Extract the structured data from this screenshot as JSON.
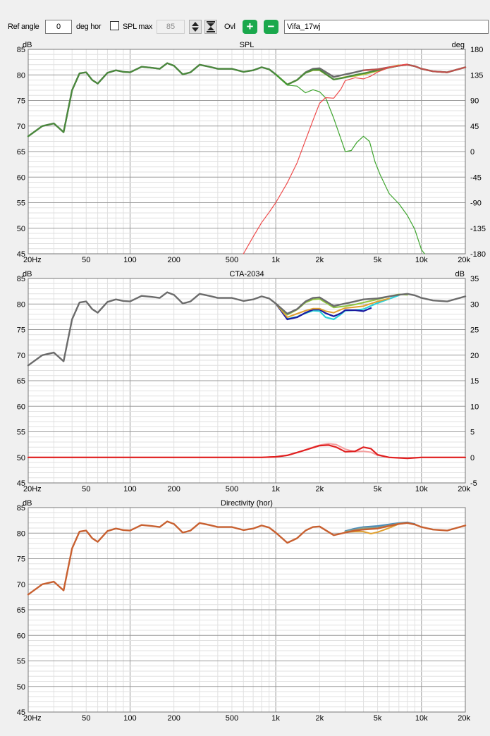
{
  "toolbar": {
    "ref_angle_label": "Ref angle",
    "ref_angle_value": "0",
    "deg_hor_label": "deg hor",
    "spl_max_label": "SPL max",
    "spl_max_value": "85",
    "spl_max_checked": false,
    "ovl_label": "Ovl",
    "driver_name": "Vifa_17wj",
    "accent_color": "#1aa84c"
  },
  "chart_data": [
    {
      "type": "line",
      "title": "SPL",
      "ylabel": "dB",
      "y2label": "deg",
      "xscale": "log",
      "xlim": [
        20,
        20000
      ],
      "ylim": [
        45,
        85
      ],
      "y2lim": [
        -180,
        180
      ],
      "grid": true,
      "xtick_labels": [
        "20Hz",
        "50",
        "100",
        "200",
        "500",
        "1k",
        "2k",
        "5k",
        "10k",
        "20k"
      ],
      "ytick_labels": [
        "45",
        "50",
        "55",
        "60",
        "65",
        "70",
        "75",
        "80",
        "85"
      ],
      "y2tick_labels": [
        "-180",
        "-135",
        "-90",
        "-45",
        "0",
        "45",
        "90",
        "135",
        "180"
      ],
      "series": [
        {
          "color": "#6b6b6b",
          "axis": "left",
          "width": 2.4,
          "x": [
            20,
            25,
            30,
            35,
            40,
            45,
            50,
            55,
            60,
            70,
            80,
            90,
            100,
            120,
            140,
            160,
            180,
            200,
            230,
            260,
            300,
            350,
            400,
            500,
            600,
            700,
            800,
            900,
            1000,
            1200,
            1400,
            1600,
            1800,
            2000,
            2500,
            3000,
            3500,
            4000,
            5000,
            6000,
            7000,
            8000,
            9000,
            10000,
            12000,
            15000,
            20000
          ],
          "y": [
            68,
            70,
            70.5,
            68.8,
            77,
            80.3,
            80.5,
            79,
            78.3,
            80.4,
            80.9,
            80.6,
            80.5,
            81.6,
            81.4,
            81.2,
            82.3,
            81.8,
            80.1,
            80.5,
            82,
            81.6,
            81.2,
            81.2,
            80.6,
            80.9,
            81.5,
            81.1,
            80.1,
            78.1,
            79,
            80.5,
            81.2,
            81.3,
            79.6,
            80.1,
            80.5,
            80.9,
            81.1,
            81.5,
            81.8,
            82,
            81.7,
            81.2,
            80.7,
            80.5,
            81.5
          ]
        },
        {
          "color": "#b5c63a",
          "axis": "left",
          "width": 2.2,
          "x": [
            1000,
            1200,
            1400,
            1600,
            1800,
            2000,
            2500,
            3000,
            3500,
            4000,
            5000,
            6000,
            7000
          ],
          "y": [
            80.1,
            78.1,
            79,
            80.4,
            80.9,
            80.9,
            79.1,
            79.6,
            79.8,
            80.1,
            80.8,
            81.5,
            81.9
          ]
        },
        {
          "color": "#4a8a3c",
          "axis": "left",
          "width": 2.2,
          "x": [
            20,
            25,
            30,
            35,
            40,
            45,
            50,
            55,
            60,
            70,
            80,
            90,
            100,
            120,
            140,
            160,
            180,
            200,
            230,
            260,
            300,
            350,
            400,
            500,
            600,
            700,
            800,
            900,
            1000,
            1200,
            1400,
            1600,
            1800,
            2000,
            2500,
            3000,
            3500,
            4000,
            5000,
            6000,
            7000,
            8000,
            9000,
            10000,
            12000,
            15000,
            20000
          ],
          "y": [
            68,
            70,
            70.5,
            68.8,
            77,
            80.3,
            80.5,
            79,
            78.3,
            80.4,
            80.9,
            80.6,
            80.5,
            81.6,
            81.4,
            81.2,
            82.3,
            81.8,
            80.1,
            80.5,
            82,
            81.6,
            81.2,
            81.2,
            80.6,
            80.9,
            81.5,
            81.1,
            80.1,
            78.1,
            79,
            80.4,
            81,
            81,
            79.1,
            79.5,
            80,
            80.3,
            80.9,
            81.4,
            81.8,
            82,
            81.7,
            81.2,
            80.7,
            80.5,
            81.5
          ]
        },
        {
          "color": "#c0504d",
          "axis": "left",
          "width": 2.2,
          "x": [
            4000,
            5000,
            6000,
            7000,
            8000,
            9000,
            10000,
            12000,
            15000,
            20000
          ],
          "y": [
            80.9,
            81.1,
            81.5,
            81.8,
            82,
            81.7,
            81.2,
            80.7,
            80.5,
            81.5
          ]
        },
        {
          "color": "#3fa52f",
          "axis": "left",
          "width": 1.2,
          "x": [
            1000,
            1200,
            1400,
            1600,
            1800,
            2000,
            2200,
            2500,
            2800,
            3000,
            3300,
            3600,
            4000,
            4400,
            4800,
            5200,
            6000,
            7000,
            8000,
            9000,
            10000,
            10500
          ],
          "y": [
            80.1,
            78,
            77.8,
            76.5,
            77.1,
            76.7,
            75.5,
            71.5,
            67.5,
            65,
            65.2,
            66.8,
            68,
            67,
            63,
            60.5,
            56.8,
            54.8,
            52.5,
            49.8,
            45.8,
            45
          ]
        },
        {
          "color": "#ee4b4b",
          "axis": "right",
          "width": 1.2,
          "x": [
            600,
            700,
            800,
            900,
            1000,
            1200,
            1400,
            1600,
            1800,
            2000,
            2200,
            2500,
            2800,
            3000,
            3500,
            4000,
            4500,
            5000,
            6000,
            7000,
            8000
          ],
          "y": [
            -180,
            -150,
            -125,
            -107,
            -90,
            -55,
            -20,
            20,
            55,
            85,
            95,
            94,
            110,
            125,
            130,
            128,
            133,
            140,
            148,
            152,
            154
          ]
        }
      ]
    },
    {
      "type": "line",
      "title": "CTA-2034",
      "ylabel": "dB",
      "y2label": "dB",
      "xscale": "log",
      "xlim": [
        20,
        20000
      ],
      "ylim": [
        45,
        85
      ],
      "y2lim": [
        -5,
        35
      ],
      "grid": true,
      "xtick_labels": [
        "20Hz",
        "50",
        "100",
        "200",
        "500",
        "1k",
        "2k",
        "5k",
        "10k",
        "20k"
      ],
      "ytick_labels": [
        "45",
        "50",
        "55",
        "60",
        "65",
        "70",
        "75",
        "80",
        "85"
      ],
      "y2tick_labels": [
        "-5",
        "0",
        "5",
        "10",
        "15",
        "20",
        "25",
        "30",
        "35"
      ],
      "series": [
        {
          "color": "#2bd0d8",
          "axis": "left",
          "width": 2.2,
          "x": [
            1000,
            1200,
            1400,
            1600,
            1800,
            2000,
            2200,
            2500,
            2800,
            3000,
            3500,
            4000,
            5000,
            6000,
            7000
          ],
          "y": [
            80.1,
            77.1,
            77.5,
            78.2,
            78.7,
            78.6,
            77.4,
            77,
            78,
            78.7,
            78.8,
            79,
            80.2,
            81,
            81.7
          ]
        },
        {
          "color": "#1a1aa0",
          "axis": "left",
          "width": 2.2,
          "x": [
            1000,
            1200,
            1400,
            1600,
            1800,
            2000,
            2200,
            2500,
            2800,
            3000,
            3500,
            4000,
            4500
          ],
          "y": [
            80.1,
            77,
            77.4,
            78.3,
            78.9,
            78.9,
            78.2,
            77.6,
            78.2,
            78.8,
            78.8,
            78.6,
            79.2
          ]
        },
        {
          "color": "#e0a030",
          "axis": "left",
          "width": 2,
          "x": [
            1000,
            1200,
            1400,
            1600,
            1800,
            2000,
            2200,
            2500,
            2800,
            3000,
            3500,
            4000,
            5000,
            6000
          ],
          "y": [
            80.1,
            77.4,
            78.1,
            78.7,
            79.1,
            79.1,
            78.6,
            78.3,
            78.9,
            79.2,
            79.4,
            79.6,
            80.5,
            81.1
          ]
        },
        {
          "color": "#8ec640",
          "axis": "left",
          "width": 2,
          "x": [
            1000,
            1200,
            1400,
            1600,
            1800,
            2000,
            2500,
            3000,
            3500,
            4000,
            5000,
            6000,
            7000,
            8000
          ],
          "y": [
            80.1,
            77.9,
            78.9,
            80.3,
            80.9,
            81,
            79.3,
            79.6,
            79.9,
            80.3,
            80.9,
            81.5,
            81.9,
            81.8
          ]
        },
        {
          "color": "#6b6b6b",
          "axis": "left",
          "width": 2.4,
          "x": [
            20,
            25,
            30,
            35,
            40,
            45,
            50,
            55,
            60,
            70,
            80,
            90,
            100,
            120,
            140,
            160,
            180,
            200,
            230,
            260,
            300,
            350,
            400,
            500,
            600,
            700,
            800,
            900,
            1000,
            1200,
            1400,
            1600,
            1800,
            2000,
            2500,
            3000,
            3500,
            4000,
            5000,
            6000,
            7000,
            8000,
            9000,
            10000,
            12000,
            15000,
            20000
          ],
          "y": [
            68,
            70,
            70.5,
            68.8,
            77,
            80.3,
            80.5,
            79,
            78.3,
            80.4,
            80.9,
            80.6,
            80.5,
            81.6,
            81.4,
            81.2,
            82.3,
            81.8,
            80.1,
            80.5,
            82,
            81.6,
            81.2,
            81.2,
            80.6,
            80.9,
            81.5,
            81.1,
            80.1,
            78.1,
            79,
            80.5,
            81.2,
            81.3,
            79.6,
            80.1,
            80.5,
            80.9,
            81.1,
            81.5,
            81.8,
            82,
            81.7,
            81.2,
            80.7,
            80.5,
            81.5
          ]
        },
        {
          "color": "#f4a0a0",
          "axis": "right",
          "width": 2,
          "x": [
            20,
            500,
            800,
            1000,
            1200,
            1500,
            1800,
            2000,
            2300,
            2600,
            3000,
            3500,
            4000,
            4500,
            5000,
            6000,
            8000,
            10000,
            20000
          ],
          "y": [
            0,
            0,
            0,
            0.1,
            0.4,
            1.2,
            2,
            2.4,
            2.7,
            2.5,
            1.6,
            1.1,
            1.2,
            1,
            0.4,
            0,
            -0.1,
            0,
            0
          ]
        },
        {
          "color": "#e02020",
          "axis": "right",
          "width": 2.2,
          "x": [
            20,
            500,
            800,
            1000,
            1200,
            1500,
            1800,
            2000,
            2300,
            2600,
            3000,
            3500,
            4000,
            4500,
            5000,
            6000,
            8000,
            10000,
            20000
          ],
          "y": [
            0,
            0,
            0,
            0.1,
            0.4,
            1.2,
            1.9,
            2.3,
            2.4,
            2,
            1.1,
            1.2,
            2,
            1.7,
            0.5,
            0,
            -0.2,
            0,
            0
          ]
        }
      ]
    },
    {
      "type": "line",
      "title": "Directivity (hor)",
      "ylabel": "dB",
      "y2label": "",
      "xscale": "log",
      "xlim": [
        20,
        20000
      ],
      "ylim": [
        45,
        85
      ],
      "grid": true,
      "xtick_labels": [
        "20Hz",
        "50",
        "100",
        "200",
        "500",
        "1k",
        "2k",
        "5k",
        "10k",
        "20k"
      ],
      "ytick_labels": [
        "45",
        "50",
        "55",
        "60",
        "65",
        "70",
        "75",
        "80",
        "85"
      ],
      "y2tick_labels": [],
      "series": [
        {
          "color": "#4a8ab8",
          "axis": "left",
          "width": 2.2,
          "x": [
            3000,
            3500,
            4000,
            5000,
            6000,
            7000,
            8000,
            9000
          ],
          "y": [
            80.4,
            80.9,
            81.2,
            81.4,
            81.7,
            82,
            82.1,
            81.8
          ]
        },
        {
          "color": "#8aa08a",
          "axis": "left",
          "width": 2.2,
          "x": [
            3000,
            3500,
            4000,
            5000,
            6000,
            7000,
            8000,
            9000
          ],
          "y": [
            80.3,
            80.7,
            81,
            81.1,
            81.5,
            81.9,
            82,
            81.7
          ]
        },
        {
          "color": "#e0a030",
          "axis": "left",
          "width": 2,
          "x": [
            3000,
            3500,
            4000,
            4500,
            5000,
            6000,
            7000,
            8000
          ],
          "y": [
            80.2,
            80.3,
            80.3,
            79.9,
            80.2,
            81,
            81.8,
            82
          ]
        },
        {
          "color": "#c86030",
          "axis": "left",
          "width": 2.4,
          "x": [
            20,
            25,
            30,
            35,
            40,
            45,
            50,
            55,
            60,
            70,
            80,
            90,
            100,
            120,
            140,
            160,
            180,
            200,
            230,
            260,
            300,
            350,
            400,
            500,
            600,
            700,
            800,
            900,
            1000,
            1200,
            1400,
            1600,
            1800,
            2000,
            2500,
            3000,
            3500,
            4000,
            5000,
            6000,
            7000,
            8000,
            9000,
            10000,
            12000,
            15000,
            20000
          ],
          "y": [
            68,
            70,
            70.5,
            68.8,
            77,
            80.3,
            80.5,
            79,
            78.3,
            80.4,
            80.9,
            80.6,
            80.5,
            81.6,
            81.4,
            81.2,
            82.3,
            81.8,
            80.1,
            80.5,
            82,
            81.6,
            81.2,
            81.2,
            80.6,
            80.9,
            81.5,
            81.1,
            80.1,
            78.1,
            79,
            80.5,
            81.2,
            81.3,
            79.6,
            80.1,
            80.5,
            80.7,
            80.9,
            81.4,
            81.8,
            82,
            81.7,
            81.2,
            80.7,
            80.5,
            81.5
          ]
        }
      ]
    }
  ]
}
